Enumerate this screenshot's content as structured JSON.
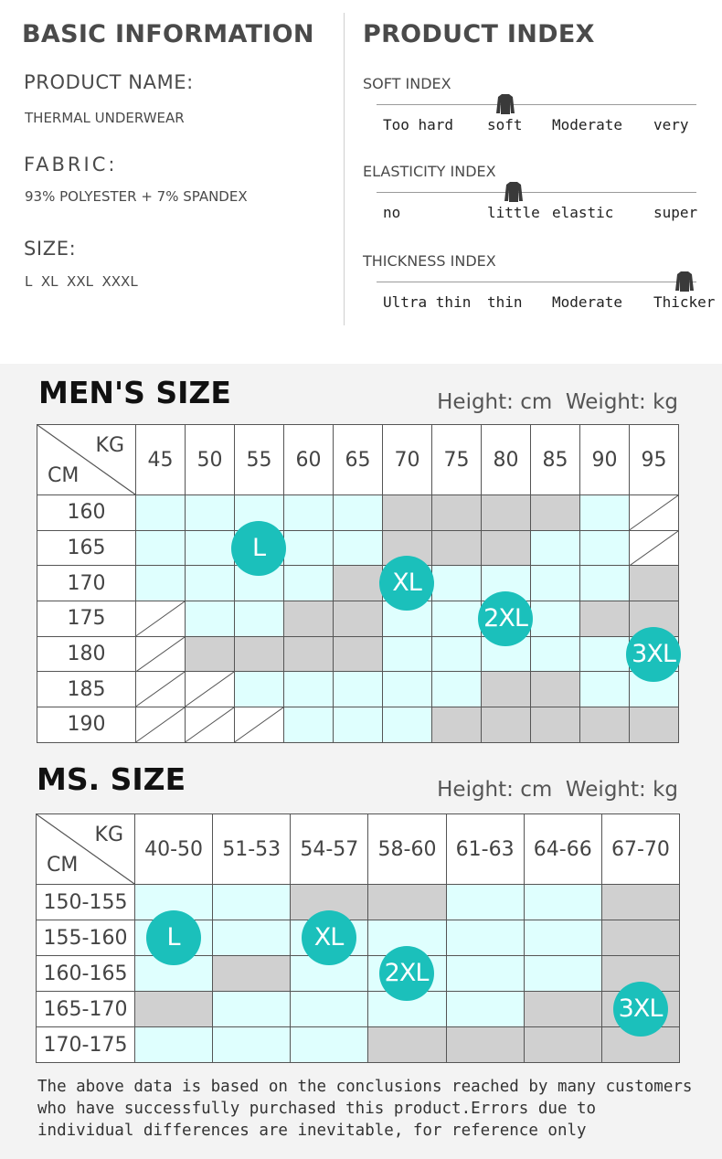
{
  "basic": {
    "title": "BASIC INFORMATION",
    "product_name_label": "PRODUCT NAME:",
    "product_name": "THERMAL UNDERWEAR",
    "fabric_label": "FABRIC:",
    "fabric": "93% POLYESTER + 7% SPANDEX",
    "size_label": "SIZE:",
    "sizes": "L  XL  XXL  XXXL"
  },
  "index": {
    "title": "PRODUCT INDEX",
    "rows": [
      {
        "name": "SOFT INDEX",
        "labels": [
          "Too hard",
          "soft",
          "Moderate",
          "very"
        ],
        "selected": 1
      },
      {
        "name": "ELASTICITY INDEX",
        "labels": [
          "no",
          "little",
          "elastic",
          "super"
        ],
        "selected": 1
      },
      {
        "name": "THICKNESS INDEX",
        "labels": [
          "Ultra thin",
          "thin",
          "Moderate",
          "Thicker"
        ],
        "selected": 3
      }
    ]
  },
  "mens": {
    "title": "MEN'S SIZE",
    "units": "Height: cm  Weight: kg",
    "corner_kg": "KG",
    "corner_cm": "CM",
    "weights": [
      "45",
      "50",
      "55",
      "60",
      "65",
      "70",
      "75",
      "80",
      "85",
      "90",
      "95"
    ],
    "rows": [
      {
        "height": "160",
        "cells": [
          "L",
          "L",
          "L",
          "L",
          "L",
          "g",
          "g",
          "g",
          "g",
          "2XL",
          "x"
        ]
      },
      {
        "height": "165",
        "cells": [
          "L",
          "L",
          "L",
          "L",
          "L",
          "g",
          "g",
          "g",
          "2XL",
          "2XL",
          "x"
        ]
      },
      {
        "height": "170",
        "cells": [
          "L",
          "L",
          "L",
          "XL",
          "g",
          "XL",
          "XL",
          "2XL",
          "2XL",
          "2XL",
          "g"
        ]
      },
      {
        "height": "175",
        "cells": [
          "x",
          "L",
          "L",
          "g",
          "g",
          "XL",
          "XL",
          "2XL",
          "2XL",
          "g",
          "g"
        ]
      },
      {
        "height": "180",
        "cells": [
          "x",
          "g",
          "g",
          "g",
          "g",
          "XL",
          "XL",
          "2XL",
          "2XL",
          "3XL",
          "3XL"
        ]
      },
      {
        "height": "185",
        "cells": [
          "x",
          "x",
          "XL",
          "XL",
          "XL",
          "XL",
          "XL",
          "g",
          "g",
          "3XL",
          "3XL"
        ]
      },
      {
        "height": "190",
        "cells": [
          "x",
          "x",
          "x",
          "XL",
          "XL",
          "XL",
          "g",
          "g",
          "g",
          "g",
          "g"
        ]
      }
    ],
    "bubbles": [
      {
        "label": "L",
        "row": 1,
        "col": 2
      },
      {
        "label": "XL",
        "row": 2,
        "col": 5
      },
      {
        "label": "2XL",
        "row": 3,
        "col": 7
      },
      {
        "label": "3XL",
        "row": 4,
        "col": 10
      }
    ]
  },
  "ms": {
    "title": "MS. SIZE",
    "units": "Height: cm  Weight: kg",
    "corner_kg": "KG",
    "corner_cm": "CM",
    "weights": [
      "40-50",
      "51-53",
      "54-57",
      "58-60",
      "61-63",
      "64-66",
      "67-70"
    ],
    "rows": [
      {
        "height": "150-155",
        "cells": [
          "L",
          "L",
          "g",
          "g",
          "2XL",
          "2XL",
          "g"
        ]
      },
      {
        "height": "155-160",
        "cells": [
          "L",
          "L",
          "XL",
          "2XL",
          "2XL",
          "2XL",
          "g"
        ]
      },
      {
        "height": "160-165",
        "cells": [
          "L",
          "g",
          "2XL",
          "2XL",
          "2XL",
          "2XL",
          "g"
        ]
      },
      {
        "height": "165-170",
        "cells": [
          "g",
          "2XL",
          "2XL",
          "2XL",
          "2XL",
          "g",
          "g"
        ]
      },
      {
        "height": "170-175",
        "cells": [
          "2XL",
          "2XL",
          "2XL",
          "g",
          "g",
          "g",
          "g"
        ]
      }
    ],
    "bubbles": [
      {
        "label": "L",
        "row": 1,
        "col": 0
      },
      {
        "label": "XL",
        "row": 1,
        "col": 2
      },
      {
        "label": "2XL",
        "row": 2,
        "col": 3
      },
      {
        "label": "3XL",
        "row": 3,
        "col": 6
      }
    ]
  },
  "note": "The above data is based on the conclusions reached by many customers who have successfully purchased this product.Errors due to individual differences are inevitable, for reference only",
  "colors": {
    "accent": "#1bc0bb",
    "size_cell": "#dffffe",
    "grey_cell": "#d0d0d0",
    "background": "#f3f3f3"
  }
}
